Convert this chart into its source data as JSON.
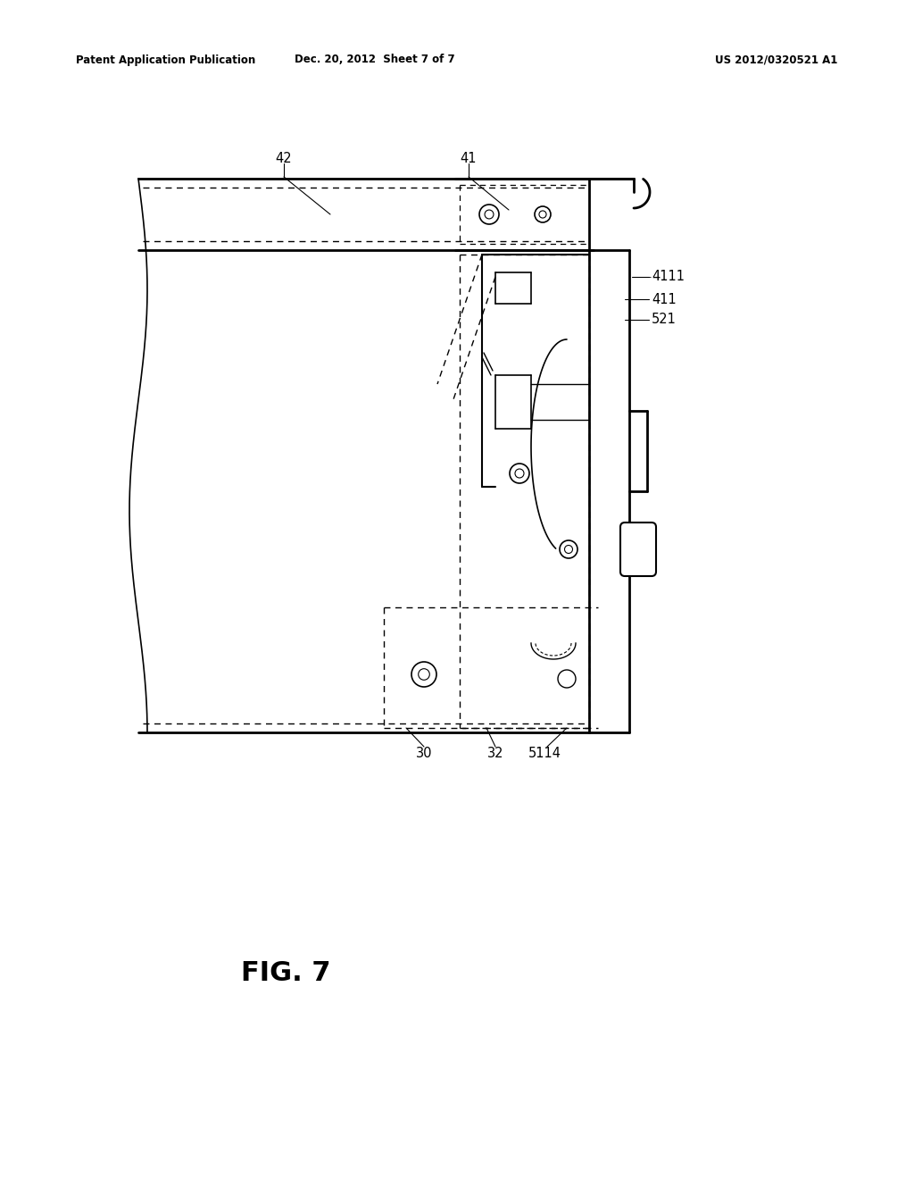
{
  "bg_color": "#ffffff",
  "line_color": "#000000",
  "header_left": "Patent Application Publication",
  "header_mid": "Dec. 20, 2012  Sheet 7 of 7",
  "header_right": "US 2012/0320521 A1",
  "fig_label": "FIG. 7",
  "figsize": [
    10.24,
    13.2
  ],
  "dpi": 100
}
